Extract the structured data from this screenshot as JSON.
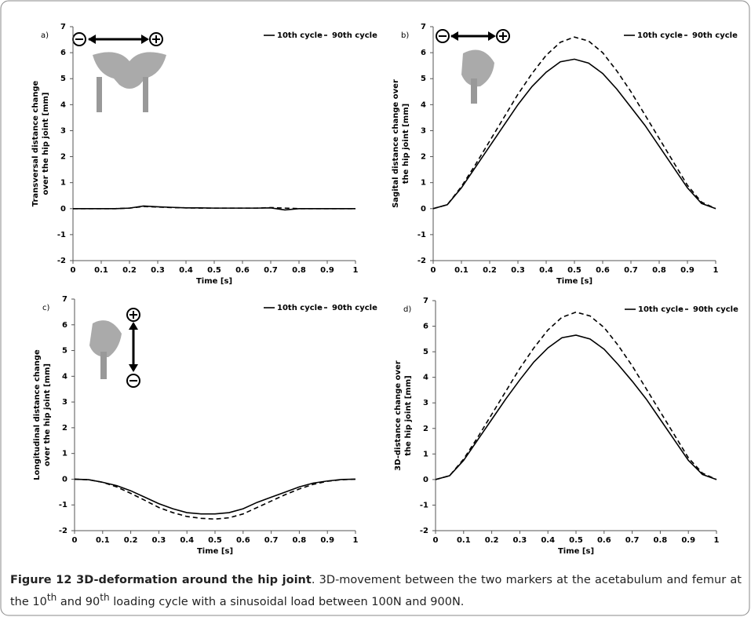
{
  "chart_data": [
    {
      "type": "line",
      "label": "a)",
      "xlabel": "Time [s]",
      "ylabel": [
        "Transversal distance change",
        "over the hip joint [mm]"
      ],
      "x": [
        0,
        0.05,
        0.1,
        0.15,
        0.2,
        0.25,
        0.3,
        0.35,
        0.4,
        0.45,
        0.5,
        0.55,
        0.6,
        0.65,
        0.7,
        0.75,
        0.8,
        0.85,
        0.9,
        0.95,
        1
      ],
      "xlim": [
        0,
        1
      ],
      "xticks": [
        0,
        0.1,
        0.2,
        0.3,
        0.4,
        0.5,
        0.6,
        0.7,
        0.8,
        0.9,
        1
      ],
      "ylim": [
        -2,
        7
      ],
      "yticks": [
        -2,
        -1,
        0,
        1,
        2,
        3,
        4,
        5,
        6,
        7
      ],
      "legend": "upper right",
      "series": [
        {
          "name": "10th cycle",
          "color": "#000000",
          "style": "solid",
          "values": [
            0,
            0,
            0,
            0,
            0.02,
            0.1,
            0.07,
            0.05,
            0.03,
            0.03,
            0.02,
            0.02,
            0.02,
            0.02,
            0.03,
            -0.05,
            0,
            0,
            0,
            0,
            0
          ]
        },
        {
          "name": "90th cycle",
          "color": "#000000",
          "style": "dashed",
          "values": [
            0,
            0,
            0,
            0,
            0.02,
            0.08,
            0.06,
            0.04,
            0.03,
            0.02,
            0.02,
            0.02,
            0.02,
            0.02,
            0.04,
            0.02,
            0,
            0,
            0,
            0,
            0
          ]
        }
      ]
    },
    {
      "type": "line",
      "label": "b)",
      "xlabel": "Time [s]",
      "ylabel": [
        "Sagital distance change over",
        "the hip joint [mm]"
      ],
      "x": [
        0,
        0.05,
        0.1,
        0.15,
        0.2,
        0.25,
        0.3,
        0.35,
        0.4,
        0.45,
        0.5,
        0.55,
        0.6,
        0.65,
        0.7,
        0.75,
        0.8,
        0.85,
        0.9,
        0.95,
        1
      ],
      "xlim": [
        0,
        1
      ],
      "xticks": [
        0,
        0.1,
        0.2,
        0.3,
        0.4,
        0.5,
        0.6,
        0.7,
        0.8,
        0.9,
        1
      ],
      "ylim": [
        -2,
        7
      ],
      "yticks": [
        -2,
        -1,
        0,
        1,
        2,
        3,
        4,
        5,
        6,
        7
      ],
      "legend": "upper right",
      "series": [
        {
          "name": "10th cycle",
          "color": "#000000",
          "style": "solid",
          "values": [
            0,
            0.15,
            0.8,
            1.6,
            2.4,
            3.2,
            4.0,
            4.7,
            5.25,
            5.65,
            5.75,
            5.6,
            5.2,
            4.6,
            3.9,
            3.2,
            2.4,
            1.6,
            0.8,
            0.2,
            0
          ]
        },
        {
          "name": "90th cycle",
          "color": "#000000",
          "style": "dashed",
          "values": [
            0,
            0.15,
            0.85,
            1.7,
            2.6,
            3.5,
            4.4,
            5.2,
            5.9,
            6.4,
            6.6,
            6.45,
            6.0,
            5.3,
            4.5,
            3.6,
            2.7,
            1.8,
            0.9,
            0.25,
            0
          ]
        }
      ]
    },
    {
      "type": "line",
      "label": "c)",
      "xlabel": "Time [s]",
      "ylabel": [
        "Longitudinal distance change",
        "over the hip joint [mm]"
      ],
      "x": [
        0,
        0.05,
        0.1,
        0.15,
        0.2,
        0.25,
        0.3,
        0.35,
        0.4,
        0.45,
        0.5,
        0.55,
        0.6,
        0.65,
        0.7,
        0.75,
        0.8,
        0.85,
        0.9,
        0.95,
        1
      ],
      "xlim": [
        0,
        1
      ],
      "xticks": [
        0,
        0.1,
        0.2,
        0.3,
        0.4,
        0.5,
        0.6,
        0.7,
        0.8,
        0.9,
        1
      ],
      "ylim": [
        -2,
        7
      ],
      "yticks": [
        -2,
        -1,
        0,
        1,
        2,
        3,
        4,
        5,
        6,
        7
      ],
      "legend": "upper right",
      "series": [
        {
          "name": "10th cycle",
          "color": "#000000",
          "style": "solid",
          "values": [
            0,
            -0.02,
            -0.12,
            -0.25,
            -0.45,
            -0.7,
            -0.95,
            -1.15,
            -1.3,
            -1.35,
            -1.35,
            -1.3,
            -1.15,
            -0.9,
            -0.7,
            -0.5,
            -0.3,
            -0.15,
            -0.07,
            -0.01,
            0
          ]
        },
        {
          "name": "90th cycle",
          "color": "#000000",
          "style": "dashed",
          "values": [
            0,
            -0.02,
            -0.12,
            -0.3,
            -0.55,
            -0.82,
            -1.1,
            -1.3,
            -1.45,
            -1.52,
            -1.55,
            -1.5,
            -1.35,
            -1.1,
            -0.85,
            -0.6,
            -0.38,
            -0.2,
            -0.08,
            -0.02,
            0
          ]
        }
      ]
    },
    {
      "type": "line",
      "label": "d)",
      "xlabel": "Time [s]",
      "ylabel": [
        "3D-distance change over",
        "the hip joint [mm]"
      ],
      "x": [
        0,
        0.05,
        0.1,
        0.15,
        0.2,
        0.25,
        0.3,
        0.35,
        0.4,
        0.45,
        0.5,
        0.55,
        0.6,
        0.65,
        0.7,
        0.75,
        0.8,
        0.85,
        0.9,
        0.95,
        1
      ],
      "xlim": [
        0,
        1
      ],
      "xticks": [
        0,
        0.1,
        0.2,
        0.3,
        0.4,
        0.5,
        0.6,
        0.7,
        0.8,
        0.9,
        1
      ],
      "ylim": [
        -2,
        7
      ],
      "yticks": [
        -2,
        -1,
        0,
        1,
        2,
        3,
        4,
        5,
        6,
        7
      ],
      "legend": "upper right",
      "series": [
        {
          "name": "10th cycle",
          "color": "#000000",
          "style": "solid",
          "values": [
            0,
            0.15,
            0.75,
            1.55,
            2.35,
            3.15,
            3.9,
            4.6,
            5.15,
            5.55,
            5.65,
            5.5,
            5.1,
            4.5,
            3.85,
            3.15,
            2.35,
            1.55,
            0.75,
            0.2,
            0
          ]
        },
        {
          "name": "90th cycle",
          "color": "#000000",
          "style": "dashed",
          "values": [
            0,
            0.15,
            0.8,
            1.65,
            2.55,
            3.45,
            4.35,
            5.15,
            5.85,
            6.35,
            6.55,
            6.4,
            5.95,
            5.25,
            4.45,
            3.55,
            2.65,
            1.75,
            0.85,
            0.25,
            0
          ]
        }
      ]
    }
  ],
  "caption": {
    "title": "Figure 12 3D-deformation around the hip joint",
    "parts": [
      ". 3D-movement between the two markers at the acetabulum and femur at the 10",
      "th",
      " and 90",
      "th",
      " loading cycle with a sinusoidal load between 100N and 900N."
    ]
  }
}
